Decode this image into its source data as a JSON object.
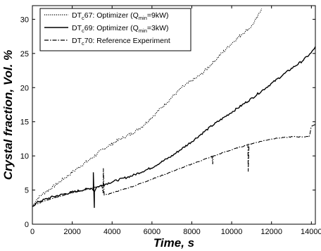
{
  "chart_data": {
    "type": "line",
    "xlabel": "Time, s",
    "ylabel": "Crystal fraction, Vol. %",
    "xlim": [
      0,
      14200
    ],
    "ylim": [
      0,
      32
    ],
    "xticks": [
      0,
      2000,
      4000,
      6000,
      8000,
      10000,
      12000,
      14000
    ],
    "yticks": [
      0,
      5,
      10,
      15,
      20,
      25,
      30
    ],
    "grid": false,
    "legend_position": "top-left",
    "series": [
      {
        "name": "DTc67: Optimizer (Qmin=9kW)",
        "legend": {
          "pre": "DT",
          "sub1": "c",
          "mid": "67: Optimizer (Q",
          "sub2": "min",
          "post": "=9kW)"
        },
        "style": "dotted",
        "x": [
          0,
          200,
          500,
          1000,
          1500,
          2000,
          2500,
          3000,
          3500,
          4000,
          4500,
          5000,
          5500,
          6000,
          6500,
          7000,
          7500,
          8000,
          8500,
          9000,
          9500,
          10000,
          10500,
          11000,
          11300,
          11500
        ],
        "y": [
          2.6,
          3.6,
          4.4,
          5.4,
          6.5,
          7.6,
          8.7,
          9.7,
          10.9,
          11.8,
          12.6,
          13.3,
          14.3,
          15.7,
          17.1,
          18.6,
          20.0,
          21.0,
          22.0,
          23.5,
          25.0,
          26.5,
          27.8,
          29.0,
          30.3,
          31.6
        ],
        "noise": 0.45
      },
      {
        "name": "DTc69: Optimizer (Qmin=3kW)",
        "legend": {
          "pre": "DT",
          "sub1": "c",
          "mid": "69: Optimizer (Q",
          "sub2": "min",
          "post": "=3kW)"
        },
        "style": "solid",
        "x": [
          0,
          300,
          1000,
          2000,
          3000,
          3100,
          3200,
          3400,
          3600,
          4000,
          5000,
          6000,
          7000,
          8000,
          9000,
          10000,
          11000,
          12000,
          13000,
          13500,
          14000,
          14200
        ],
        "y": [
          2.6,
          3.3,
          4.0,
          4.7,
          5.3,
          4.7,
          5.4,
          5.6,
          5.8,
          6.2,
          7.1,
          8.3,
          10.0,
          12.1,
          14.4,
          16.4,
          18.4,
          20.6,
          22.8,
          23.8,
          25.1,
          26.0
        ],
        "noise": 0.3,
        "spikes": [
          [
            3060,
            7.6
          ],
          [
            3110,
            2.4
          ]
        ]
      },
      {
        "name": "DTc70: Reference Experiment",
        "legend": {
          "pre": "DT",
          "sub1": "c",
          "mid": "70: Reference Experiment",
          "sub2": "",
          "post": ""
        },
        "style": "dashdot",
        "x": [
          0,
          500,
          1000,
          2000,
          3000,
          3500,
          3560,
          3620,
          3700,
          4000,
          5000,
          6000,
          7000,
          8000,
          9000,
          10000,
          11000,
          12000,
          13000,
          13900,
          14000,
          14200
        ],
        "y": [
          2.6,
          3.3,
          3.8,
          4.6,
          5.3,
          5.6,
          4.4,
          4.2,
          4.3,
          4.6,
          5.5,
          6.6,
          7.7,
          8.8,
          9.9,
          10.9,
          11.8,
          12.5,
          12.8,
          12.8,
          14.4,
          14.6
        ],
        "noise": 0.12,
        "spikes": [
          [
            3560,
            8.2
          ],
          [
            9050,
            8.8
          ],
          [
            10800,
            11.8
          ],
          [
            10830,
            7.7
          ]
        ]
      }
    ]
  }
}
